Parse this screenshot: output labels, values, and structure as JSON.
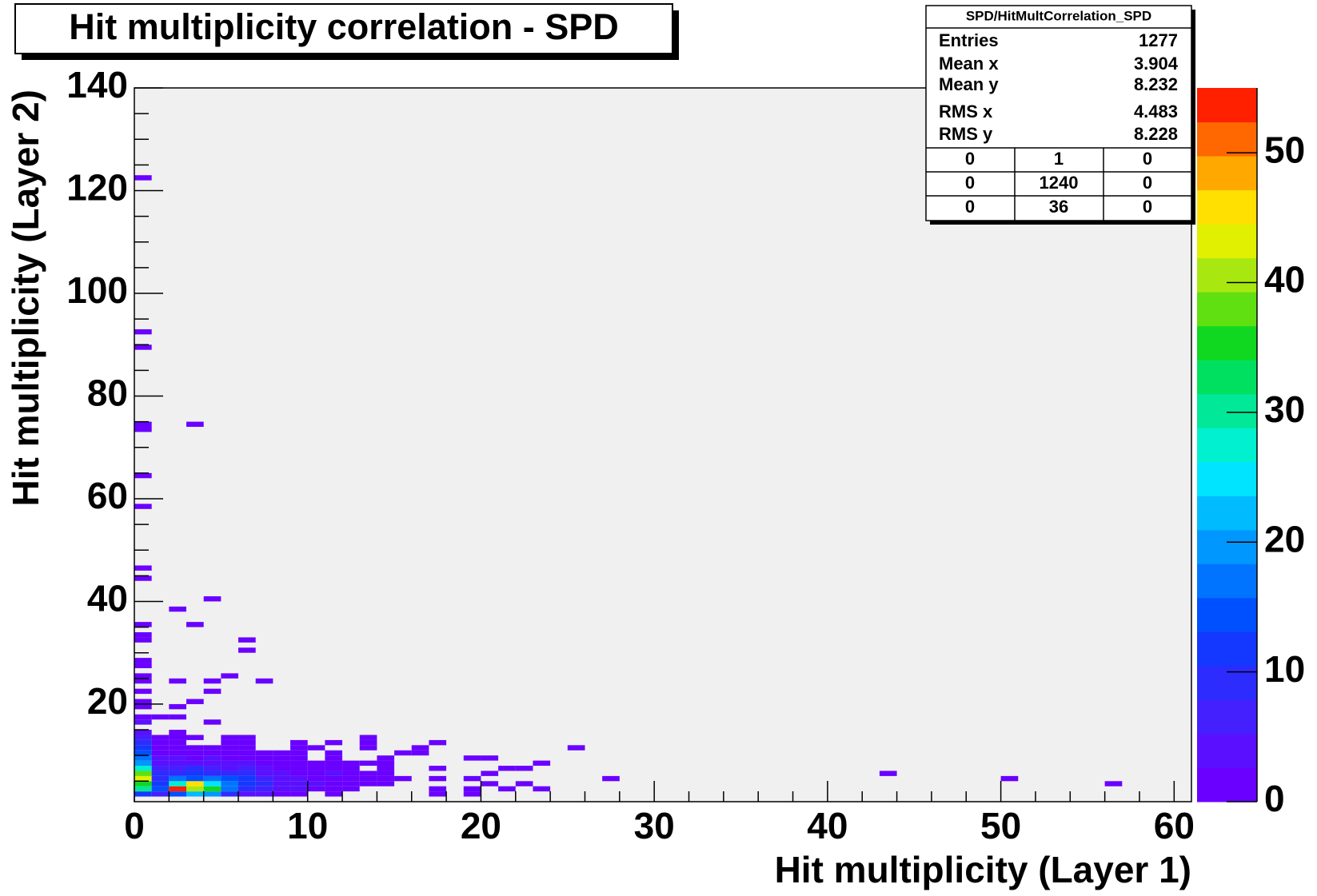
{
  "chart_data": {
    "type": "heatmap",
    "title": "Hit multiplicity correlation - SPD",
    "x_label": "Hit multiplicity (Layer 1)",
    "y_label": "Hit multiplicity (Layer 2)",
    "xlim": [
      0,
      61
    ],
    "xticks": [
      0,
      10,
      20,
      30,
      40,
      50,
      60
    ],
    "xminor": 2,
    "ylim": [
      1,
      140
    ],
    "yticks": [
      20,
      40,
      60,
      80,
      100,
      120,
      140
    ],
    "yminor": 5,
    "zlim": [
      0,
      55
    ],
    "zticks": [
      0,
      10,
      20,
      30,
      40,
      50
    ],
    "xbin_width": 1,
    "ybin_width": 1,
    "background": "#f0f0f0",
    "palette": [
      "#6a00ff",
      "#5a10ff",
      "#4420ff",
      "#2c2cff",
      "#1438ff",
      "#0050ff",
      "#0074ff",
      "#0098ff",
      "#00bcff",
      "#00e4ff",
      "#00f0d0",
      "#00e898",
      "#00e060",
      "#10d820",
      "#60e010",
      "#a8e810",
      "#e0f000",
      "#ffe000",
      "#ffa800",
      "#ff6800",
      "#ff2000"
    ],
    "cells": [
      [
        0,
        2,
        12
      ],
      [
        1,
        2,
        6
      ],
      [
        2,
        2,
        14
      ],
      [
        3,
        2,
        22
      ],
      [
        4,
        2,
        20
      ],
      [
        5,
        2,
        8
      ],
      [
        6,
        2,
        5
      ],
      [
        7,
        2,
        3
      ],
      [
        8,
        2,
        2
      ],
      [
        9,
        2,
        1
      ],
      [
        11,
        2,
        1
      ],
      [
        17,
        2,
        1
      ],
      [
        19,
        2,
        1
      ],
      [
        0,
        3,
        30
      ],
      [
        1,
        3,
        14
      ],
      [
        2,
        3,
        53
      ],
      [
        3,
        3,
        40
      ],
      [
        4,
        3,
        35
      ],
      [
        5,
        3,
        16
      ],
      [
        6,
        3,
        10
      ],
      [
        7,
        3,
        6
      ],
      [
        8,
        3,
        4
      ],
      [
        9,
        3,
        3
      ],
      [
        10,
        3,
        2
      ],
      [
        11,
        3,
        2
      ],
      [
        12,
        3,
        1
      ],
      [
        17,
        3,
        1
      ],
      [
        19,
        3,
        1
      ],
      [
        21,
        3,
        1
      ],
      [
        23,
        3,
        1
      ],
      [
        0,
        4,
        35
      ],
      [
        1,
        4,
        12
      ],
      [
        2,
        4,
        28
      ],
      [
        3,
        4,
        45
      ],
      [
        4,
        4,
        24
      ],
      [
        5,
        4,
        17
      ],
      [
        6,
        4,
        12
      ],
      [
        7,
        4,
        8
      ],
      [
        8,
        4,
        5
      ],
      [
        9,
        4,
        4
      ],
      [
        10,
        4,
        3
      ],
      [
        11,
        4,
        2
      ],
      [
        12,
        4,
        2
      ],
      [
        13,
        4,
        1
      ],
      [
        14,
        4,
        1
      ],
      [
        20,
        4,
        1
      ],
      [
        22,
        4,
        1
      ],
      [
        56,
        4,
        1
      ],
      [
        0,
        5,
        42
      ],
      [
        1,
        5,
        10
      ],
      [
        2,
        5,
        17
      ],
      [
        3,
        5,
        14
      ],
      [
        4,
        5,
        18
      ],
      [
        5,
        5,
        15
      ],
      [
        6,
        5,
        11
      ],
      [
        7,
        5,
        7
      ],
      [
        8,
        5,
        5
      ],
      [
        9,
        5,
        3
      ],
      [
        10,
        5,
        2
      ],
      [
        11,
        5,
        2
      ],
      [
        12,
        5,
        2
      ],
      [
        13,
        5,
        1
      ],
      [
        14,
        5,
        1
      ],
      [
        15,
        5,
        1
      ],
      [
        17,
        5,
        1
      ],
      [
        19,
        5,
        1
      ],
      [
        27,
        5,
        1
      ],
      [
        50,
        5,
        1
      ],
      [
        0,
        6,
        38
      ],
      [
        1,
        6,
        8
      ],
      [
        2,
        6,
        10
      ],
      [
        3,
        6,
        12
      ],
      [
        4,
        6,
        9
      ],
      [
        5,
        6,
        8
      ],
      [
        6,
        6,
        9
      ],
      [
        7,
        6,
        4
      ],
      [
        8,
        6,
        3
      ],
      [
        9,
        6,
        2
      ],
      [
        10,
        6,
        2
      ],
      [
        11,
        6,
        3
      ],
      [
        12,
        6,
        1
      ],
      [
        13,
        6,
        1
      ],
      [
        14,
        6,
        1
      ],
      [
        20,
        6,
        1
      ],
      [
        43,
        6,
        1
      ],
      [
        0,
        7,
        28
      ],
      [
        1,
        7,
        6
      ],
      [
        2,
        7,
        7
      ],
      [
        3,
        7,
        8
      ],
      [
        4,
        7,
        6
      ],
      [
        5,
        7,
        5
      ],
      [
        6,
        7,
        6
      ],
      [
        7,
        7,
        3
      ],
      [
        8,
        7,
        2
      ],
      [
        9,
        7,
        2
      ],
      [
        10,
        7,
        2
      ],
      [
        11,
        7,
        1
      ],
      [
        12,
        7,
        1
      ],
      [
        14,
        7,
        1
      ],
      [
        17,
        7,
        1
      ],
      [
        21,
        7,
        1
      ],
      [
        22,
        7,
        1
      ],
      [
        0,
        8,
        20
      ],
      [
        1,
        8,
        4
      ],
      [
        2,
        8,
        5
      ],
      [
        3,
        8,
        4
      ],
      [
        4,
        8,
        4
      ],
      [
        5,
        8,
        3
      ],
      [
        6,
        8,
        3
      ],
      [
        7,
        8,
        2
      ],
      [
        8,
        8,
        2
      ],
      [
        9,
        8,
        1
      ],
      [
        10,
        8,
        1
      ],
      [
        11,
        8,
        1
      ],
      [
        12,
        8,
        1
      ],
      [
        13,
        8,
        1
      ],
      [
        14,
        8,
        1
      ],
      [
        23,
        8,
        1
      ],
      [
        0,
        9,
        16
      ],
      [
        1,
        9,
        3
      ],
      [
        2,
        9,
        3
      ],
      [
        3,
        9,
        2
      ],
      [
        4,
        9,
        3
      ],
      [
        5,
        9,
        2
      ],
      [
        6,
        9,
        2
      ],
      [
        7,
        9,
        2
      ],
      [
        8,
        9,
        1
      ],
      [
        9,
        9,
        1
      ],
      [
        11,
        9,
        1
      ],
      [
        14,
        9,
        1
      ],
      [
        19,
        9,
        1
      ],
      [
        20,
        9,
        1
      ],
      [
        0,
        10,
        14
      ],
      [
        1,
        10,
        2
      ],
      [
        2,
        10,
        2
      ],
      [
        3,
        10,
        2
      ],
      [
        4,
        10,
        1
      ],
      [
        5,
        10,
        1
      ],
      [
        6,
        10,
        1
      ],
      [
        7,
        10,
        1
      ],
      [
        8,
        10,
        1
      ],
      [
        9,
        10,
        1
      ],
      [
        11,
        10,
        1
      ],
      [
        15,
        10,
        1
      ],
      [
        16,
        10,
        1
      ],
      [
        0,
        11,
        12
      ],
      [
        1,
        11,
        2
      ],
      [
        2,
        11,
        1
      ],
      [
        3,
        11,
        1
      ],
      [
        4,
        11,
        1
      ],
      [
        5,
        11,
        2
      ],
      [
        6,
        11,
        1
      ],
      [
        9,
        11,
        1
      ],
      [
        10,
        11,
        1
      ],
      [
        13,
        11,
        1
      ],
      [
        16,
        11,
        1
      ],
      [
        25,
        11,
        1
      ],
      [
        0,
        12,
        9
      ],
      [
        1,
        12,
        1
      ],
      [
        2,
        12,
        1
      ],
      [
        5,
        12,
        1
      ],
      [
        6,
        12,
        1
      ],
      [
        9,
        12,
        1
      ],
      [
        11,
        12,
        1
      ],
      [
        13,
        12,
        1
      ],
      [
        17,
        12,
        1
      ],
      [
        0,
        13,
        6
      ],
      [
        1,
        13,
        1
      ],
      [
        2,
        13,
        1
      ],
      [
        3,
        13,
        1
      ],
      [
        5,
        13,
        1
      ],
      [
        6,
        13,
        1
      ],
      [
        13,
        13,
        1
      ],
      [
        0,
        14,
        4
      ],
      [
        2,
        14,
        1
      ],
      [
        0,
        16,
        3
      ],
      [
        4,
        16,
        1
      ],
      [
        0,
        17,
        2
      ],
      [
        1,
        17,
        1
      ],
      [
        2,
        17,
        1
      ],
      [
        0,
        19,
        2
      ],
      [
        2,
        19,
        1
      ],
      [
        0,
        20,
        2
      ],
      [
        3,
        20,
        1
      ],
      [
        0,
        22,
        1
      ],
      [
        4,
        22,
        1
      ],
      [
        0,
        24,
        1
      ],
      [
        2,
        24,
        1
      ],
      [
        4,
        24,
        1
      ],
      [
        7,
        24,
        1
      ],
      [
        0,
        25,
        1
      ],
      [
        5,
        25,
        1
      ],
      [
        0,
        27,
        1
      ],
      [
        0,
        28,
        1
      ],
      [
        6,
        30,
        1
      ],
      [
        0,
        32,
        1
      ],
      [
        6,
        32,
        1
      ],
      [
        0,
        33,
        1
      ],
      [
        0,
        35,
        1
      ],
      [
        3,
        35,
        1
      ],
      [
        2,
        38,
        1
      ],
      [
        4,
        40,
        1
      ],
      [
        0,
        44,
        1
      ],
      [
        0,
        46,
        1
      ],
      [
        0,
        58,
        1
      ],
      [
        0,
        64,
        1
      ],
      [
        0,
        73,
        1
      ],
      [
        0,
        74,
        1
      ],
      [
        3,
        74,
        1
      ],
      [
        0,
        89,
        1
      ],
      [
        0,
        92,
        1
      ],
      [
        0,
        122,
        1
      ]
    ],
    "stats": {
      "title": "SPD/HitMultCorrelation_SPD",
      "rows": [
        {
          "label": "Entries",
          "value": 1277
        },
        {
          "label": "Mean x",
          "value": 3.904
        },
        {
          "label": "Mean y",
          "value": 8.232
        },
        {
          "label": "RMS x",
          "value": 4.483
        },
        {
          "label": "RMS y",
          "value": 8.228
        }
      ],
      "grid": [
        [
          0,
          1,
          0
        ],
        [
          0,
          1240,
          0
        ],
        [
          0,
          36,
          0
        ]
      ]
    }
  }
}
